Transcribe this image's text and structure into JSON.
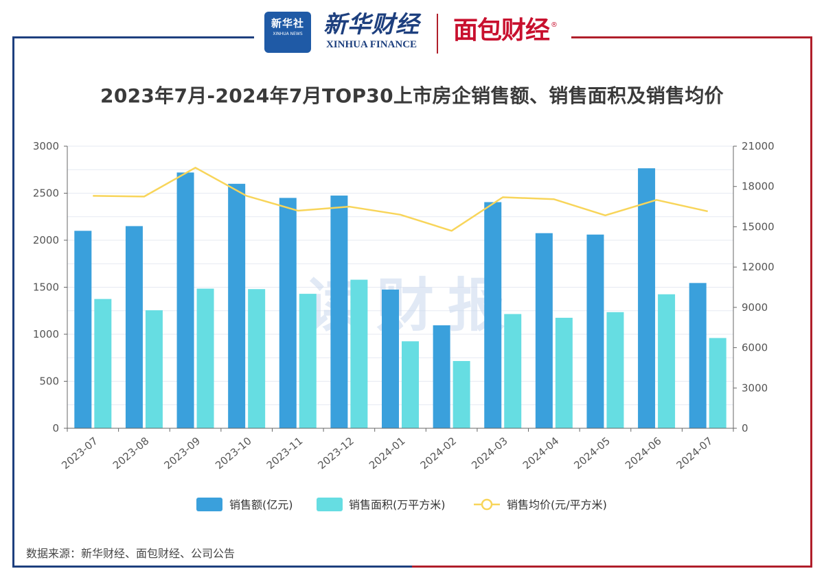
{
  "header": {
    "logo_xinhua_cn": "新华社",
    "logo_xinhua_en": "XINHUA NEWS",
    "logo_finance_cn": "新华财经",
    "logo_finance_en": "XINHUA FINANCE",
    "logo_mianbao": "面包财经",
    "registered_mark": "®"
  },
  "watermark": "读财报",
  "source_note": "数据来源：新华财经、面包财经、公司公告",
  "colors": {
    "sales_amount": "#3aa0dc",
    "sales_area": "#66dde2",
    "avg_price": "#f8d55a",
    "frame_left": "#1d3f7e",
    "frame_right": "#b01e2a"
  },
  "chart_data": {
    "type": "bar",
    "title": "2023年7月-2024年7月TOP30上市房企销售额、销售面积及销售均价",
    "categories": [
      "2023-07",
      "2023-08",
      "2023-09",
      "2023-10",
      "2023-11",
      "2023-12",
      "2024-01",
      "2024-02",
      "2024-03",
      "2024-04",
      "2024-05",
      "2024-06",
      "2024-07"
    ],
    "series": [
      {
        "name": "销售额(亿元)",
        "type": "bar",
        "axis": "left",
        "values": [
          2100,
          2150,
          2720,
          2600,
          2450,
          2475,
          1475,
          1095,
          2405,
          2075,
          2060,
          2765,
          1545
        ]
      },
      {
        "name": "销售面积(万平方米)",
        "type": "bar",
        "axis": "left",
        "values": [
          1375,
          1255,
          1485,
          1480,
          1430,
          1580,
          925,
          715,
          1215,
          1175,
          1235,
          1425,
          960
        ]
      },
      {
        "name": "销售均价(元/平方米)",
        "type": "line",
        "axis": "right",
        "values": [
          17300,
          17250,
          19400,
          17300,
          16200,
          16500,
          15900,
          14700,
          17200,
          17050,
          15850,
          17000,
          16150
        ]
      }
    ],
    "y_left": {
      "min": 0,
      "max": 3000,
      "ticks": [
        0,
        500,
        1000,
        1500,
        2000,
        2500,
        3000
      ]
    },
    "y_right": {
      "min": 0,
      "max": 21000,
      "ticks": [
        0,
        3000,
        6000,
        9000,
        12000,
        15000,
        18000,
        21000
      ]
    },
    "grid": true,
    "legend_position": "bottom"
  }
}
